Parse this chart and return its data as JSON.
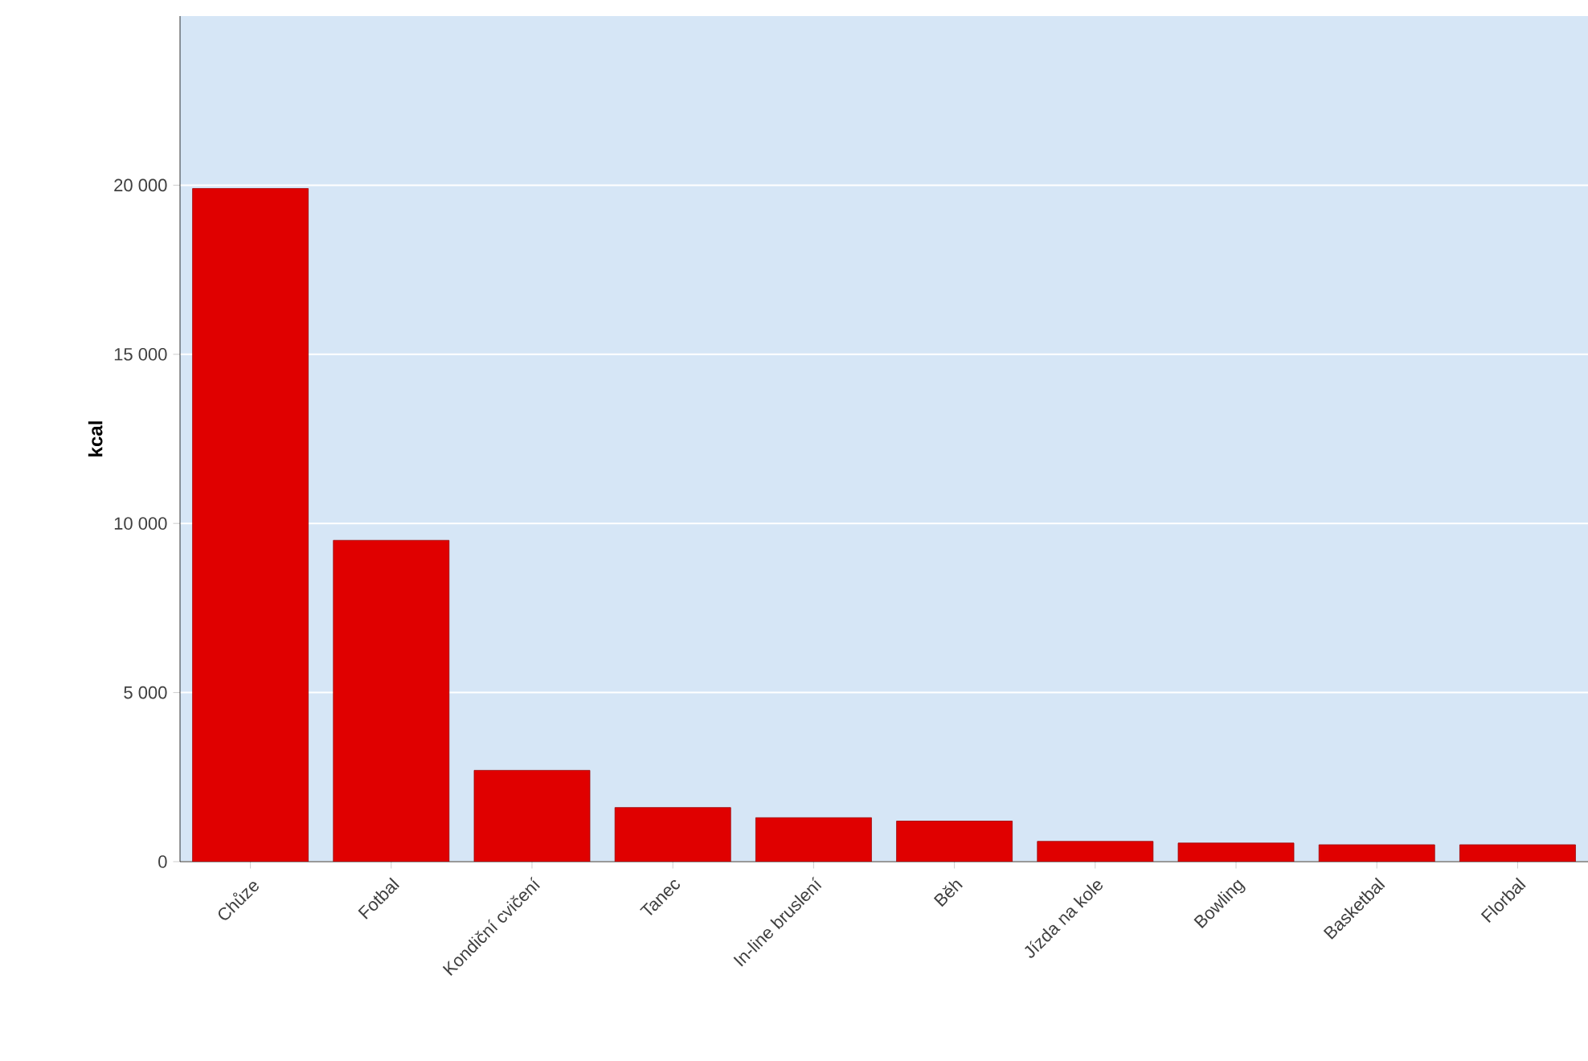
{
  "chart_data": {
    "type": "bar",
    "ylabel": "kcal",
    "categories": [
      "Chůze",
      "Fotbal",
      "Kondiční cvičení",
      "Tanec",
      "In-line bruslení",
      "Běh",
      "Jízda na kole",
      "Bowling",
      "Basketbal",
      "Florbal"
    ],
    "values": [
      19900,
      9500,
      2700,
      1600,
      1300,
      1200,
      600,
      550,
      500,
      500
    ],
    "color": "#e00000",
    "ylim": [
      0,
      25000
    ],
    "yticks": [
      {
        "value": 0,
        "label": "0"
      },
      {
        "value": 5000,
        "label": "5 000"
      },
      {
        "value": 10000,
        "label": "10 000"
      },
      {
        "value": 15000,
        "label": "15 000"
      },
      {
        "value": 20000,
        "label": "20 000"
      }
    ],
    "grid": true
  }
}
